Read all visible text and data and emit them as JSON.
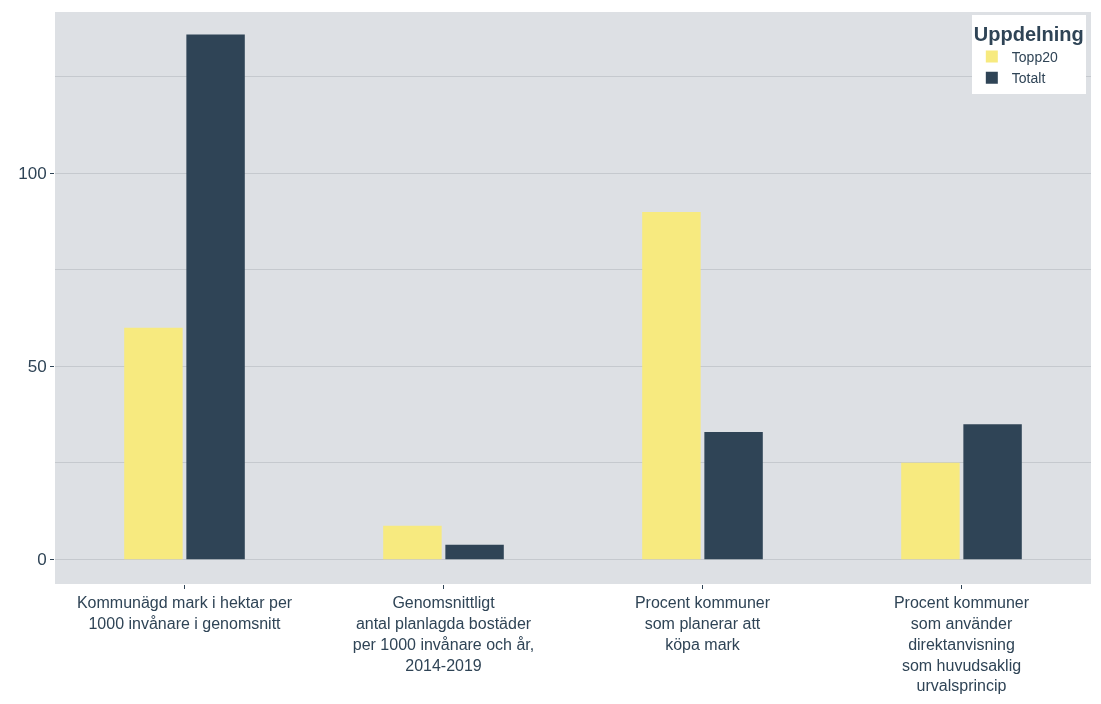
{
  "chart_data": {
    "type": "bar",
    "categories": [
      "Kommunägd mark i hektar per\n1000 invånare i genomsnitt",
      "Genomsnittligt\nantal planlagda bostäder\nper 1000 invånare och år,\n2014-2019",
      "Procent kommuner\nsom planerar att\nköpa mark",
      "Procent kommuner\nsom använder\ndirektanvisning\nsom huvudsaklig\nurvalsprincip"
    ],
    "series": [
      {
        "name": "Topp20",
        "color": "#f7ea7f",
        "values": [
          60,
          8.7,
          90,
          25
        ]
      },
      {
        "name": "Totalt",
        "color": "#2f4456",
        "values": [
          136,
          3.8,
          33,
          35
        ]
      }
    ],
    "ylim": [
      -6.4,
      141.8
    ],
    "yticks": [
      0,
      {
        "value": 25,
        "label": null
      },
      50,
      {
        "value": 75,
        "label": null
      },
      100,
      {
        "value": 125,
        "label": null
      }
    ],
    "grid": "y",
    "legend": "top right",
    "legend_title": "Uppdelning"
  }
}
